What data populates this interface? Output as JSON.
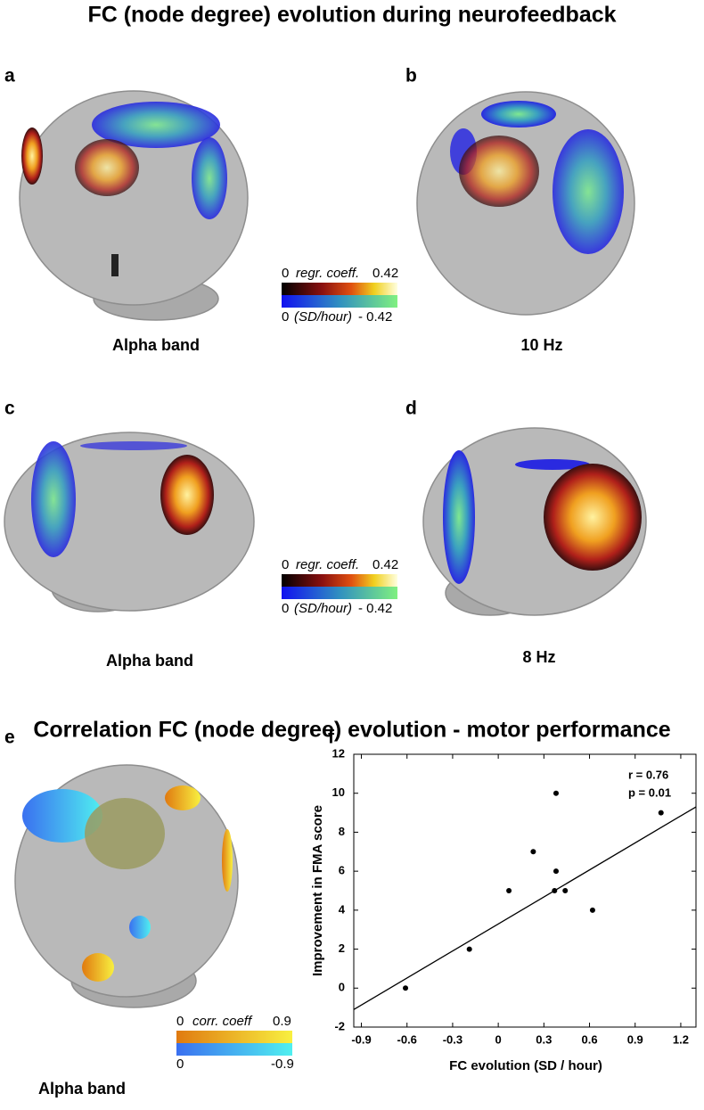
{
  "header": {
    "title": "FC (node degree) evolution during neurofeedback"
  },
  "section_title": "Correlation FC (node degree) evolution - motor performance",
  "panels": [
    {
      "label": "a",
      "caption": "Alpha band"
    },
    {
      "label": "b",
      "caption": "10 Hz"
    },
    {
      "label": "c",
      "caption": "Alpha band"
    },
    {
      "label": "d",
      "caption": "8 Hz"
    },
    {
      "label": "e",
      "caption": "Alpha band"
    },
    {
      "label": "f"
    }
  ],
  "colorbars": [
    {
      "top_min": "0",
      "top_name": "regr. coeff.",
      "top_max": "0.42",
      "bottom_min": "0",
      "bottom_name": "(SD/hour)",
      "bottom_max": "- 0.42"
    },
    {
      "top_min": "0",
      "top_name": "regr. coeff.",
      "top_max": "0.42",
      "bottom_min": "0",
      "bottom_name": "(SD/hour)",
      "bottom_max": "- 0.42"
    },
    {
      "top_min": "0",
      "top_name": "corr. coeff",
      "top_max": "0.9",
      "bottom_min": "0",
      "bottom_max": "-0.9"
    }
  ],
  "chart_data": {
    "type": "scatter",
    "x_label": "FC evolution (SD / hour)",
    "y_label": "Improvement in FMA score",
    "annotations": [
      "r = 0.76",
      "p = 0.01"
    ],
    "x": [
      -0.61,
      -0.19,
      0.07,
      0.23,
      0.38,
      0.37,
      0.44,
      0.38,
      0.62,
      1.07
    ],
    "values": [
      0,
      2,
      5,
      7,
      6,
      5,
      5,
      10,
      4,
      9
    ],
    "color": "#000000",
    "fit_line": {
      "x": [
        -0.95,
        1.3
      ],
      "y": [
        -1.1,
        9.3
      ]
    },
    "xlim": [
      -0.95,
      1.3
    ],
    "ylim": [
      -2,
      12
    ],
    "xticks": [
      -0.9,
      -0.6,
      -0.3,
      0,
      0.3,
      0.6,
      0.9,
      1.2
    ],
    "yticks": [
      -2,
      0,
      2,
      4,
      6,
      8,
      10,
      12
    ]
  }
}
